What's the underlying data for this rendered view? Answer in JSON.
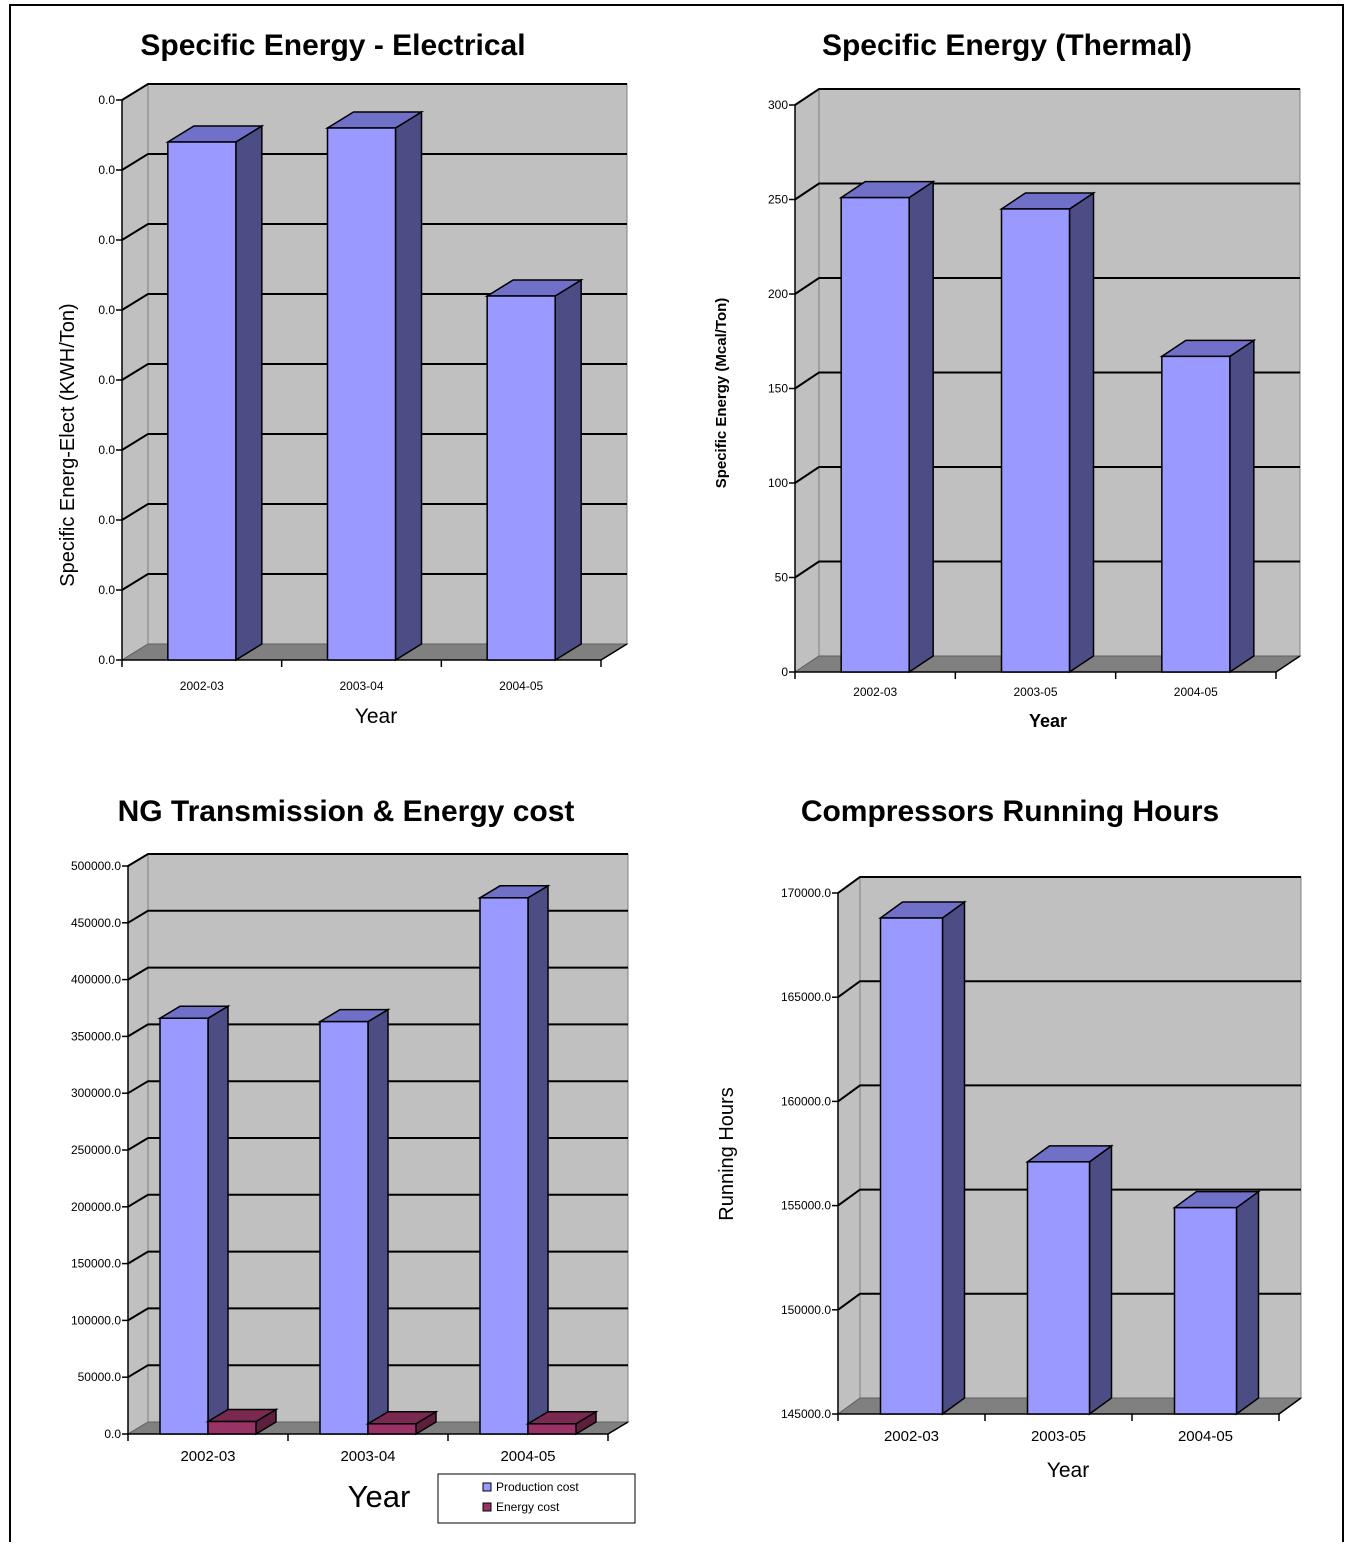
{
  "colors": {
    "plot_bg": "#c0c0c0",
    "floor": "#808080",
    "bar_front": "#9999ff",
    "bar_side": "#4d4d86",
    "bar_top": "#7070c8",
    "bar2_front": "#993366",
    "bar2_side": "#5c1f3d",
    "bar2_top": "#7a2950"
  },
  "chart_data": [
    {
      "type": "bar",
      "title": "Specific Energy - Electrical",
      "xlabel": "Year",
      "ylabel": "Specific Energ-Elect (KWH/Ton)",
      "categories": [
        "2002-03",
        "2003-04",
        "2004-05"
      ],
      "ytick_labels": [
        "0.0",
        "0.0",
        "0.0",
        "0.0",
        "0.0",
        "0.0",
        "0.0",
        "0.0",
        "0.0"
      ],
      "ylim": [
        0,
        8
      ],
      "series": [
        {
          "values": [
            7.4,
            7.6,
            5.2
          ]
        }
      ]
    },
    {
      "type": "bar",
      "title": "Specific Energy (Thermal)",
      "xlabel": "Year",
      "ylabel": "Specific Energy (Mcal/Ton)",
      "categories": [
        "2002-03",
        "2003-05",
        "2004-05"
      ],
      "ytick_labels": [
        "0",
        "50",
        "100",
        "150",
        "200",
        "250",
        "300"
      ],
      "ylim": [
        0,
        300
      ],
      "series": [
        {
          "values": [
            251,
            245,
            167
          ]
        }
      ]
    },
    {
      "type": "bar",
      "title": "NG Transmission & Energy cost",
      "xlabel": "Year",
      "ylabel": "",
      "categories": [
        "2002-03",
        "2003-04",
        "2004-05"
      ],
      "ytick_labels": [
        "0.0",
        "50000.0",
        "100000.0",
        "150000.0",
        "200000.0",
        "250000.0",
        "300000.0",
        "350000.0",
        "400000.0",
        "450000.0",
        "500000.0"
      ],
      "ylim": [
        0,
        500000
      ],
      "legend": {
        "position": "bottom-right",
        "entries": [
          "Production cost",
          "Energy cost"
        ]
      },
      "series": [
        {
          "name": "Production cost",
          "values": [
            366000,
            363000,
            472000
          ]
        },
        {
          "name": "Energy cost",
          "values": [
            11000,
            9000,
            9000
          ]
        }
      ]
    },
    {
      "type": "bar",
      "title": "Compressors Running Hours",
      "xlabel": "Year",
      "ylabel": "Running Hours",
      "categories": [
        "2002-03",
        "2003-05",
        "2004-05"
      ],
      "ytick_labels": [
        "145000.0",
        "150000.0",
        "155000.0",
        "160000.0",
        "165000.0",
        "170000.0"
      ],
      "ylim": [
        145000,
        170000
      ],
      "series": [
        {
          "values": [
            168800,
            157100,
            154900
          ]
        }
      ]
    }
  ]
}
